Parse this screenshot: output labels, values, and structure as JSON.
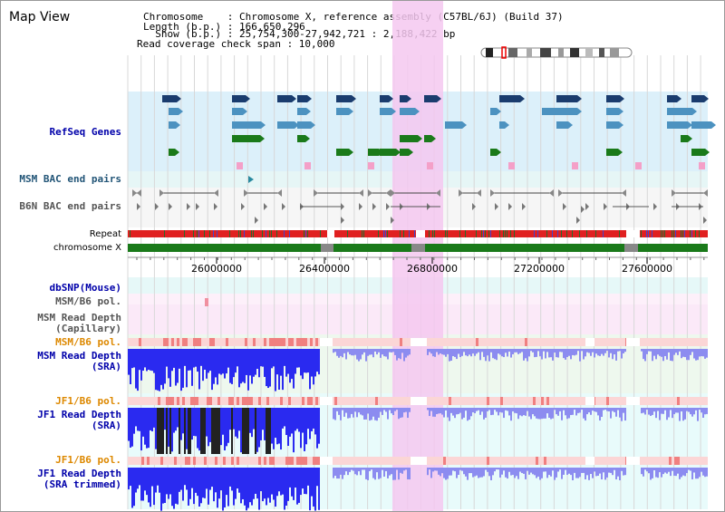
{
  "header": {
    "title": "Map View",
    "info_lines": [
      "Chromosome    : Chromosome X, reference assembly (C57BL/6J) (Build 37)",
      "Length (b.p.) : 166,650,296",
      "  Show (b.p.) : 25,754,300-27,942,721 : 2,188,422 bp",
      "Read coverage check span : 10,000"
    ]
  },
  "tracks": {
    "refseq": "RefSeq Genes",
    "msm_bac": "MSM BAC end pairs",
    "b6n_bac": "B6N BAC end pairs",
    "repeat": "Repeat",
    "chromosome": "chromosome X",
    "dbsnp": "dbSNP(Mouse)",
    "msm_b6_pol_1": "MSM/B6 pol.",
    "msm_read_depth_cap": "MSM Read Depth\n(Capillary)",
    "msm_b6_pol_2": "MSM/B6 pol.",
    "msm_read_depth_sra": "MSM Read Depth\n(SRA)",
    "jf1_b6_pol_1": "JF1/B6 pol.",
    "jf1_read_depth_sra": "JF1 Read Depth\n(SRA)",
    "jf1_b6_pol_2": "JF1/B6 pol.",
    "jf1_read_depth_trim": "JF1 Read Depth\n(SRA trimmed)"
  },
  "axis": {
    "ticks": [
      "26000000",
      "26400000",
      "26800000",
      "27200000",
      "27600000"
    ]
  },
  "colors": {
    "highlight": "#f5c8f0",
    "refseq_bg": "#dcf0fa",
    "gene_dark": "#1a3c6e",
    "gene_mid": "#4c92c0",
    "gene_green": "#1a7a1a",
    "repeat_red": "#e02020",
    "chrom_green": "#1a7a1a",
    "depth_blue": "#2a2af0",
    "pol_red": "#f08080"
  }
}
